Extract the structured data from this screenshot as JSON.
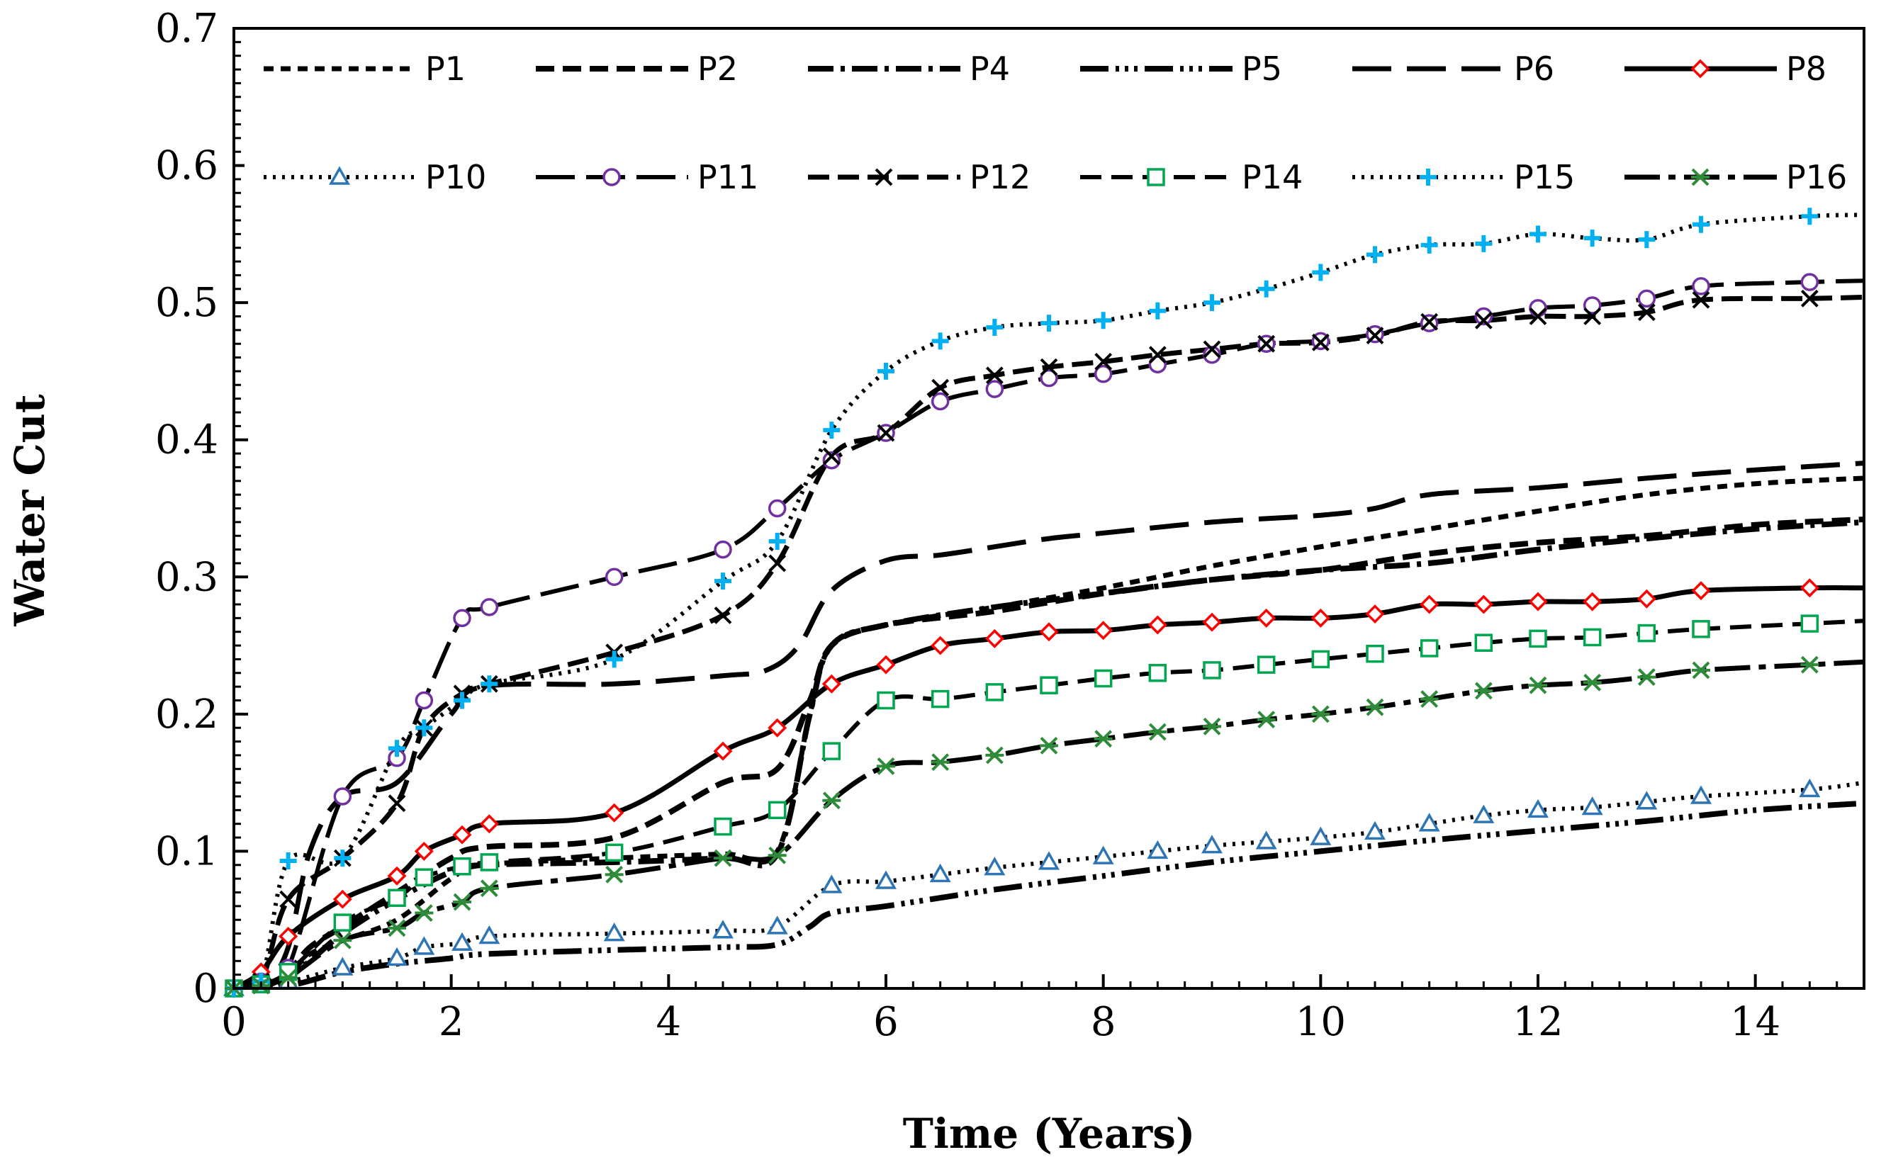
{
  "chart_data": {
    "type": "line",
    "title": "",
    "xlabel": "Time (Years)",
    "ylabel": "Water Cut",
    "xlim": [
      0,
      15
    ],
    "ylim": [
      0,
      0.7
    ],
    "x_ticks": [
      0,
      2,
      4,
      6,
      8,
      10,
      12,
      14
    ],
    "x_tick_labels": [
      "0",
      "2",
      "4",
      "6",
      "8",
      "10",
      "12",
      "14"
    ],
    "y_ticks": [
      0,
      0.1,
      0.2,
      0.3,
      0.4,
      0.5,
      0.6,
      0.7
    ],
    "y_tick_labels": [
      "0",
      "0.1",
      "0.2",
      "0.3",
      "0.4",
      "0.5",
      "0.6",
      "0.7"
    ],
    "legend_position": "top",
    "series": [
      {
        "name": "P1",
        "dash": "14 10",
        "width": 7,
        "color": "#000000",
        "marker": "none",
        "marker_color": "",
        "x": [
          0,
          0.3,
          0.5,
          0.7,
          1,
          1.5,
          2,
          2.3,
          3.5,
          4.5,
          5,
          5.3,
          5.5,
          6,
          7,
          8,
          9,
          10,
          11,
          12,
          13,
          14,
          15
        ],
        "y": [
          0,
          0.002,
          0.01,
          0.025,
          0.035,
          0.05,
          0.08,
          0.09,
          0.095,
          0.098,
          0.1,
          0.2,
          0.25,
          0.265,
          0.278,
          0.292,
          0.308,
          0.322,
          0.335,
          0.348,
          0.36,
          0.368,
          0.372
        ]
      },
      {
        "name": "P2",
        "dash": "26 12",
        "width": 8,
        "color": "#000000",
        "marker": "none",
        "marker_color": "",
        "x": [
          0,
          0.3,
          0.5,
          0.7,
          1,
          1.5,
          2,
          2.3,
          3.5,
          4.5,
          5,
          5.3,
          5.5,
          6,
          7,
          8,
          9,
          10,
          11,
          12,
          13,
          14,
          15
        ],
        "y": [
          0,
          0.003,
          0.012,
          0.03,
          0.045,
          0.07,
          0.095,
          0.103,
          0.11,
          0.15,
          0.16,
          0.21,
          0.25,
          0.265,
          0.275,
          0.288,
          0.298,
          0.305,
          0.317,
          0.325,
          0.33,
          0.338,
          0.342
        ]
      },
      {
        "name": "P4",
        "dash": "36 10 6 10",
        "width": 8,
        "color": "#000000",
        "marker": "none",
        "marker_color": "",
        "x": [
          0,
          0.3,
          0.5,
          0.7,
          1,
          1.5,
          2,
          2.3,
          3.5,
          4.5,
          5,
          5.3,
          5.5,
          6,
          7,
          8,
          9,
          10,
          11,
          12,
          13,
          14,
          15
        ],
        "y": [
          0,
          0.002,
          0.008,
          0.02,
          0.04,
          0.065,
          0.085,
          0.09,
          0.092,
          0.095,
          0.098,
          0.2,
          0.25,
          0.265,
          0.278,
          0.288,
          0.298,
          0.305,
          0.31,
          0.32,
          0.328,
          0.335,
          0.34
        ]
      },
      {
        "name": "P5",
        "dash": "40 10 5 8 5 8 5 10",
        "width": 8,
        "color": "#000000",
        "marker": "none",
        "marker_color": "",
        "x": [
          0,
          0.5,
          1,
          1.5,
          2,
          2.3,
          3.5,
          4.5,
          5,
          5.3,
          5.5,
          6,
          7,
          8,
          9,
          10,
          11,
          12,
          13,
          14,
          15
        ],
        "y": [
          0,
          0.002,
          0.012,
          0.018,
          0.022,
          0.025,
          0.028,
          0.03,
          0.032,
          0.045,
          0.055,
          0.06,
          0.072,
          0.082,
          0.092,
          0.1,
          0.108,
          0.115,
          0.122,
          0.13,
          0.135
        ]
      },
      {
        "name": "P6",
        "dash": "55 22",
        "width": 7,
        "color": "#000000",
        "marker": "none",
        "marker_color": "",
        "x": [
          0,
          0.3,
          0.5,
          0.7,
          1,
          1.5,
          2,
          2.3,
          3.5,
          4.5,
          4.9,
          5.2,
          5.5,
          6,
          6.5,
          7,
          7.5,
          8,
          9,
          10,
          10.5,
          11,
          12,
          13,
          14,
          15
        ],
        "y": [
          0,
          0.005,
          0.03,
          0.1,
          0.14,
          0.15,
          0.2,
          0.22,
          0.222,
          0.228,
          0.232,
          0.25,
          0.29,
          0.312,
          0.316,
          0.322,
          0.328,
          0.332,
          0.34,
          0.345,
          0.35,
          0.36,
          0.365,
          0.372,
          0.378,
          0.383
        ]
      },
      {
        "name": "P8",
        "dash": "",
        "width": 7,
        "color": "#000000",
        "marker": "diamond",
        "marker_color": "#ff0000",
        "x": [
          0,
          0.25,
          0.5,
          1,
          1.5,
          1.75,
          2.1,
          2.35,
          3.5,
          4.5,
          5,
          5.5,
          6,
          6.5,
          7,
          7.5,
          8,
          8.5,
          9,
          9.5,
          10,
          10.5,
          11,
          11.5,
          12,
          12.5,
          13,
          13.5,
          14.5,
          15
        ],
        "y": [
          0,
          0.012,
          0.038,
          0.065,
          0.082,
          0.1,
          0.112,
          0.12,
          0.128,
          0.173,
          0.19,
          0.222,
          0.236,
          0.25,
          0.255,
          0.26,
          0.261,
          0.265,
          0.267,
          0.27,
          0.27,
          0.273,
          0.28,
          0.28,
          0.282,
          0.282,
          0.284,
          0.29,
          0.292,
          0.292
        ]
      },
      {
        "name": "P10",
        "dash": "4 9",
        "width": 6,
        "color": "#000000",
        "marker": "triangle",
        "marker_color": "#2e75b6",
        "x": [
          0,
          0.5,
          1,
          1.5,
          1.75,
          2.1,
          2.35,
          3.5,
          4.5,
          5,
          5.5,
          6,
          6.5,
          7,
          7.5,
          8,
          8.5,
          9,
          9.5,
          10,
          10.5,
          11,
          11.5,
          12,
          12.5,
          13,
          13.5,
          14.5,
          15
        ],
        "y": [
          0,
          0.005,
          0.015,
          0.022,
          0.03,
          0.033,
          0.038,
          0.04,
          0.042,
          0.045,
          0.075,
          0.078,
          0.083,
          0.088,
          0.092,
          0.096,
          0.1,
          0.104,
          0.107,
          0.11,
          0.114,
          0.12,
          0.126,
          0.13,
          0.132,
          0.136,
          0.14,
          0.145,
          0.15
        ]
      },
      {
        "name": "P11",
        "dash": "55 16",
        "width": 6,
        "color": "#000000",
        "marker": "circle",
        "marker_color": "#7030a0",
        "x": [
          0,
          0.25,
          0.5,
          1,
          1.5,
          1.75,
          2.1,
          2.35,
          3.5,
          4.5,
          5,
          5.5,
          6,
          6.5,
          7,
          7.5,
          8,
          8.5,
          9,
          9.5,
          10,
          10.5,
          11,
          11.5,
          12,
          12.5,
          13,
          13.5,
          14.5,
          15
        ],
        "y": [
          0,
          0.005,
          0.015,
          0.14,
          0.168,
          0.21,
          0.27,
          0.278,
          0.3,
          0.32,
          0.35,
          0.385,
          0.405,
          0.428,
          0.437,
          0.445,
          0.448,
          0.455,
          0.462,
          0.47,
          0.472,
          0.477,
          0.485,
          0.49,
          0.496,
          0.498,
          0.503,
          0.512,
          0.515,
          0.516
        ]
      },
      {
        "name": "P12",
        "dash": "30 12",
        "width": 7,
        "color": "#000000",
        "marker": "x",
        "marker_color": "#000000",
        "x": [
          0,
          0.25,
          0.5,
          1,
          1.5,
          1.75,
          2.1,
          2.35,
          3.5,
          4.5,
          5,
          5.5,
          6,
          6.5,
          7,
          7.5,
          8,
          8.5,
          9,
          9.5,
          10,
          10.5,
          11,
          11.5,
          12,
          12.5,
          13,
          13.5,
          14.5,
          15
        ],
        "y": [
          0,
          0.005,
          0.065,
          0.095,
          0.135,
          0.19,
          0.215,
          0.222,
          0.245,
          0.272,
          0.31,
          0.388,
          0.405,
          0.438,
          0.447,
          0.453,
          0.457,
          0.462,
          0.466,
          0.47,
          0.471,
          0.476,
          0.486,
          0.487,
          0.49,
          0.49,
          0.493,
          0.502,
          0.503,
          0.504
        ]
      },
      {
        "name": "P14",
        "dash": "30 14",
        "width": 6,
        "color": "#000000",
        "marker": "square",
        "marker_color": "#00a650",
        "x": [
          0,
          0.25,
          0.5,
          1,
          1.5,
          1.75,
          2.1,
          2.35,
          3.5,
          4.5,
          5,
          5.5,
          6,
          6.5,
          7,
          7.5,
          8,
          8.5,
          9,
          9.5,
          10,
          10.5,
          11,
          11.5,
          12,
          12.5,
          13,
          13.5,
          14.5,
          15
        ],
        "y": [
          0,
          0.003,
          0.012,
          0.048,
          0.066,
          0.081,
          0.089,
          0.092,
          0.099,
          0.118,
          0.13,
          0.173,
          0.21,
          0.211,
          0.216,
          0.221,
          0.226,
          0.23,
          0.232,
          0.236,
          0.24,
          0.244,
          0.248,
          0.252,
          0.255,
          0.256,
          0.259,
          0.262,
          0.266,
          0.268
        ]
      },
      {
        "name": "P15",
        "dash": "4 9",
        "width": 6,
        "color": "#000000",
        "marker": "plus",
        "marker_color": "#00b0f0",
        "x": [
          0,
          0.25,
          0.5,
          1,
          1.5,
          1.75,
          2.1,
          2.35,
          3.5,
          4.5,
          5,
          5.5,
          6,
          6.5,
          7,
          7.5,
          8,
          8.5,
          9,
          9.5,
          10,
          10.5,
          11,
          11.5,
          12,
          12.5,
          13,
          13.5,
          14.5,
          15
        ],
        "y": [
          0,
          0.005,
          0.093,
          0.095,
          0.175,
          0.19,
          0.21,
          0.222,
          0.24,
          0.297,
          0.326,
          0.407,
          0.45,
          0.472,
          0.482,
          0.485,
          0.487,
          0.494,
          0.5,
          0.51,
          0.522,
          0.535,
          0.542,
          0.543,
          0.55,
          0.547,
          0.546,
          0.557,
          0.563,
          0.564
        ]
      },
      {
        "name": "P16",
        "dash": "50 12 10 12",
        "width": 7,
        "color": "#000000",
        "marker": "star",
        "marker_color": "#2e8b3a",
        "x": [
          0,
          0.25,
          0.5,
          1,
          1.5,
          1.75,
          2.1,
          2.35,
          3.5,
          4.5,
          5,
          5.5,
          6,
          6.5,
          7,
          7.5,
          8,
          8.5,
          9,
          9.5,
          10,
          10.5,
          11,
          11.5,
          12,
          12.5,
          13,
          13.5,
          14.5,
          15
        ],
        "y": [
          0,
          0.002,
          0.008,
          0.035,
          0.044,
          0.055,
          0.063,
          0.073,
          0.083,
          0.095,
          0.097,
          0.137,
          0.162,
          0.165,
          0.17,
          0.177,
          0.182,
          0.187,
          0.191,
          0.196,
          0.2,
          0.205,
          0.211,
          0.217,
          0.221,
          0.223,
          0.227,
          0.232,
          0.236,
          0.238
        ]
      }
    ]
  }
}
